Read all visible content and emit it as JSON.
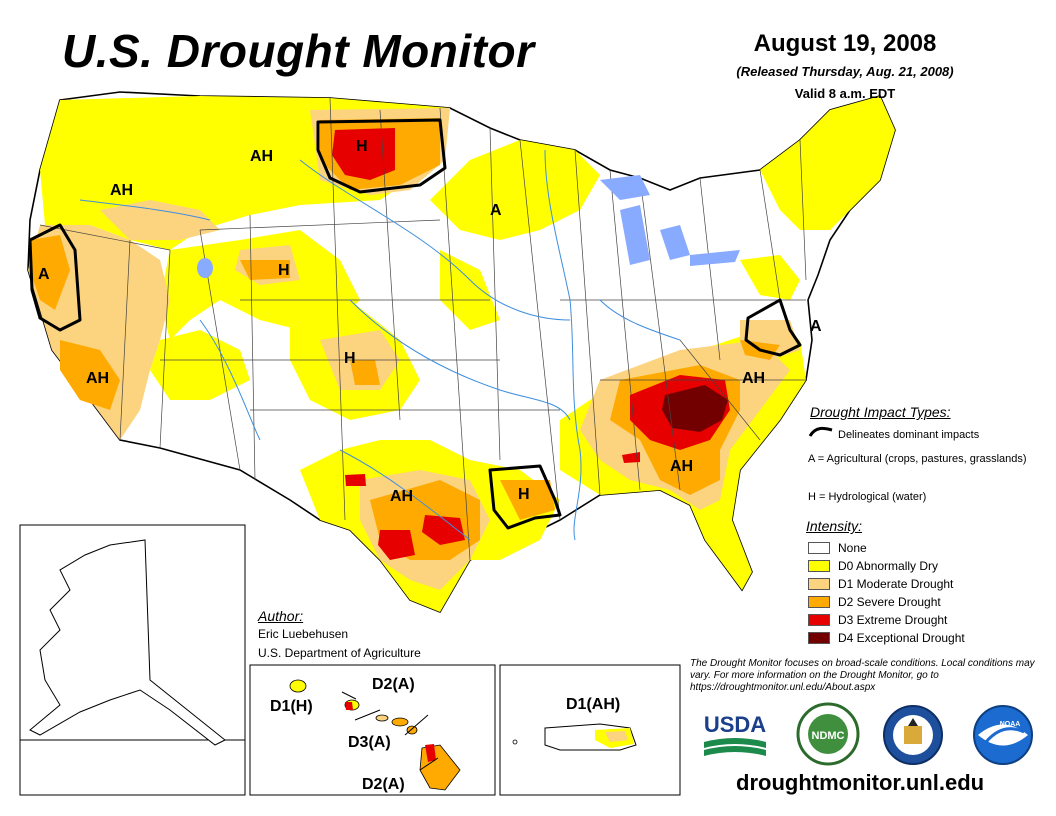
{
  "header": {
    "title": "U.S. Drought Monitor",
    "date": "August 19, 2008",
    "released": "(Released Thursday, Aug. 21, 2008)",
    "valid": "Valid 8 a.m. EDT"
  },
  "map": {
    "region_labels": [
      {
        "id": "nw-or",
        "text": "AH"
      },
      {
        "id": "mt",
        "text": "AH"
      },
      {
        "id": "nd",
        "text": "H"
      },
      {
        "id": "mn",
        "text": "A"
      },
      {
        "id": "ca-n",
        "text": "A"
      },
      {
        "id": "ca-s",
        "text": "AH"
      },
      {
        "id": "wy",
        "text": "H"
      },
      {
        "id": "co",
        "text": "H"
      },
      {
        "id": "tx",
        "text": "AH"
      },
      {
        "id": "la",
        "text": "H"
      },
      {
        "id": "se",
        "text": "AH"
      },
      {
        "id": "va",
        "text": "AH"
      },
      {
        "id": "md",
        "text": "A"
      }
    ],
    "insets": {
      "hawaii": [
        {
          "id": "kauai",
          "text": "D1(H)"
        },
        {
          "id": "oahu",
          "text": "D2(A)"
        },
        {
          "id": "maui",
          "text": "D3(A)"
        },
        {
          "id": "big-island",
          "text": "D2(A)"
        }
      ],
      "puerto_rico": {
        "text": "D1(AH)"
      }
    }
  },
  "legend": {
    "impact_title": "Drought Impact Types:",
    "impact_items": [
      {
        "key": "line",
        "text": "Delineates dominant impacts"
      },
      {
        "key": "A",
        "text": "A = Agricultural (crops, pastures, grasslands)"
      },
      {
        "key": "H",
        "text": "H = Hydrological (water)"
      }
    ],
    "intensity_title": "Intensity:",
    "intensity_items": [
      {
        "label": "None",
        "color": "#ffffff"
      },
      {
        "label": "D0 Abnormally Dry",
        "color": "#ffff00"
      },
      {
        "label": "D1 Moderate Drought",
        "color": "#fcd37f"
      },
      {
        "label": "D2 Severe Drought",
        "color": "#ffaa00"
      },
      {
        "label": "D3 Extreme Drought",
        "color": "#e60000"
      },
      {
        "label": "D4 Exceptional Drought",
        "color": "#730000"
      }
    ]
  },
  "author": {
    "heading": "Author:",
    "name": "Eric Luebehusen",
    "org": "U.S. Department of Agriculture"
  },
  "disclaimer": "The Drought Monitor focuses on broad-scale conditions. Local conditions may vary. For more information on the Drought Monitor, go to https://droughtmonitor.unl.edu/About.aspx",
  "logos": {
    "usda": "USDA",
    "ndmc": "NDMC",
    "noaa": "NOAA"
  },
  "footer_url": "droughtmonitor.unl.edu",
  "colors": {
    "none": "#ffffff",
    "d0": "#ffff00",
    "d1": "#fcd37f",
    "d2": "#ffaa00",
    "d3": "#e60000",
    "d4": "#730000",
    "state_line": "#555555",
    "river": "#3e8ede",
    "lake": "#88aaff"
  }
}
